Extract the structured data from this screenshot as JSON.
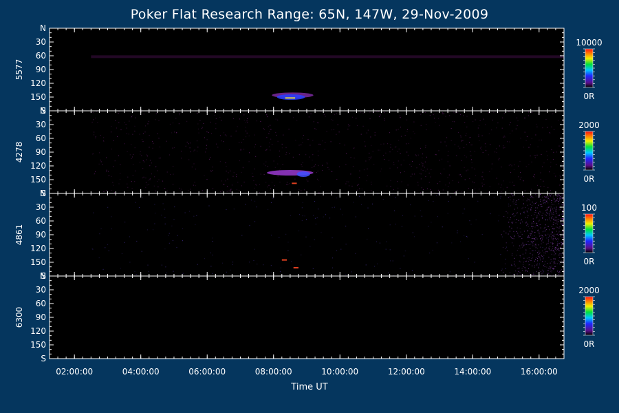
{
  "title": "Poker Flat Research Range: 65N, 147W, 29-Nov-2009",
  "chart_data": {
    "type": "heatmap",
    "title": "Poker Flat Research Range: 65N, 147W, 29-Nov-2009",
    "xlabel": "Time UT",
    "x_ticks": [
      "02:00:00",
      "04:00:00",
      "06:00:00",
      "08:00:00",
      "10:00:00",
      "12:00:00",
      "14:00:00",
      "16:00:00"
    ],
    "x_tick_hours": [
      2,
      4,
      6,
      8,
      10,
      12,
      14,
      16
    ],
    "xlim_hours": [
      1.25,
      16.75
    ],
    "y_ticks": [
      "N",
      "30",
      "60",
      "90",
      "120",
      "150",
      "S"
    ],
    "y_tick_values": [
      0,
      30,
      60,
      90,
      120,
      150,
      180
    ],
    "ylim": [
      0,
      180
    ],
    "colorbar_min_label": "0R",
    "panels": [
      {
        "ylabel": "5577",
        "colorbar_max_label": "10000",
        "data_start_hour": 2.5,
        "features": [
          {
            "kind": "faint-band",
            "t0": 2.5,
            "t1": 16.75,
            "y": 62,
            "color": "#2a0a2e"
          },
          {
            "kind": "arc",
            "t0": 7.95,
            "t1": 9.2,
            "y": 146,
            "color": "#7a2aa0"
          },
          {
            "kind": "arc",
            "t0": 8.1,
            "t1": 8.95,
            "y": 150,
            "color": "#2a40ff"
          },
          {
            "kind": "spot",
            "t0": 8.35,
            "t1": 8.65,
            "y": 152,
            "color": "#e0d040"
          }
        ]
      },
      {
        "ylabel": "4278",
        "colorbar_max_label": "2000",
        "data_start_hour": 2.5,
        "features": [
          {
            "kind": "noise",
            "t0": 2.5,
            "t1": 16.75,
            "color": "#5a1a60"
          },
          {
            "kind": "arc",
            "t0": 7.8,
            "t1": 9.2,
            "y": 135,
            "color": "#9a3ad0"
          },
          {
            "kind": "arc",
            "t0": 8.7,
            "t1": 9.1,
            "y": 138,
            "color": "#4050ff"
          },
          {
            "kind": "spot",
            "t0": 8.55,
            "t1": 8.7,
            "y": 158,
            "color": "#e04020"
          }
        ]
      },
      {
        "ylabel": "4861",
        "colorbar_max_label": "100",
        "data_start_hour": 2.5,
        "features": [
          {
            "kind": "sparse-noise",
            "t0": 2.5,
            "t1": 16.75,
            "color": "#3a2a80"
          },
          {
            "kind": "dense-noise",
            "t0": 14.8,
            "t1": 16.75,
            "color": "#7a3aa0"
          },
          {
            "kind": "spot",
            "t0": 8.25,
            "t1": 8.4,
            "y": 145,
            "color": "#e04020"
          },
          {
            "kind": "spot",
            "t0": 8.6,
            "t1": 8.75,
            "y": 162,
            "color": "#e04020"
          }
        ]
      },
      {
        "ylabel": "6300",
        "colorbar_max_label": "2000",
        "data_start_hour": 2.5,
        "features": []
      }
    ]
  }
}
